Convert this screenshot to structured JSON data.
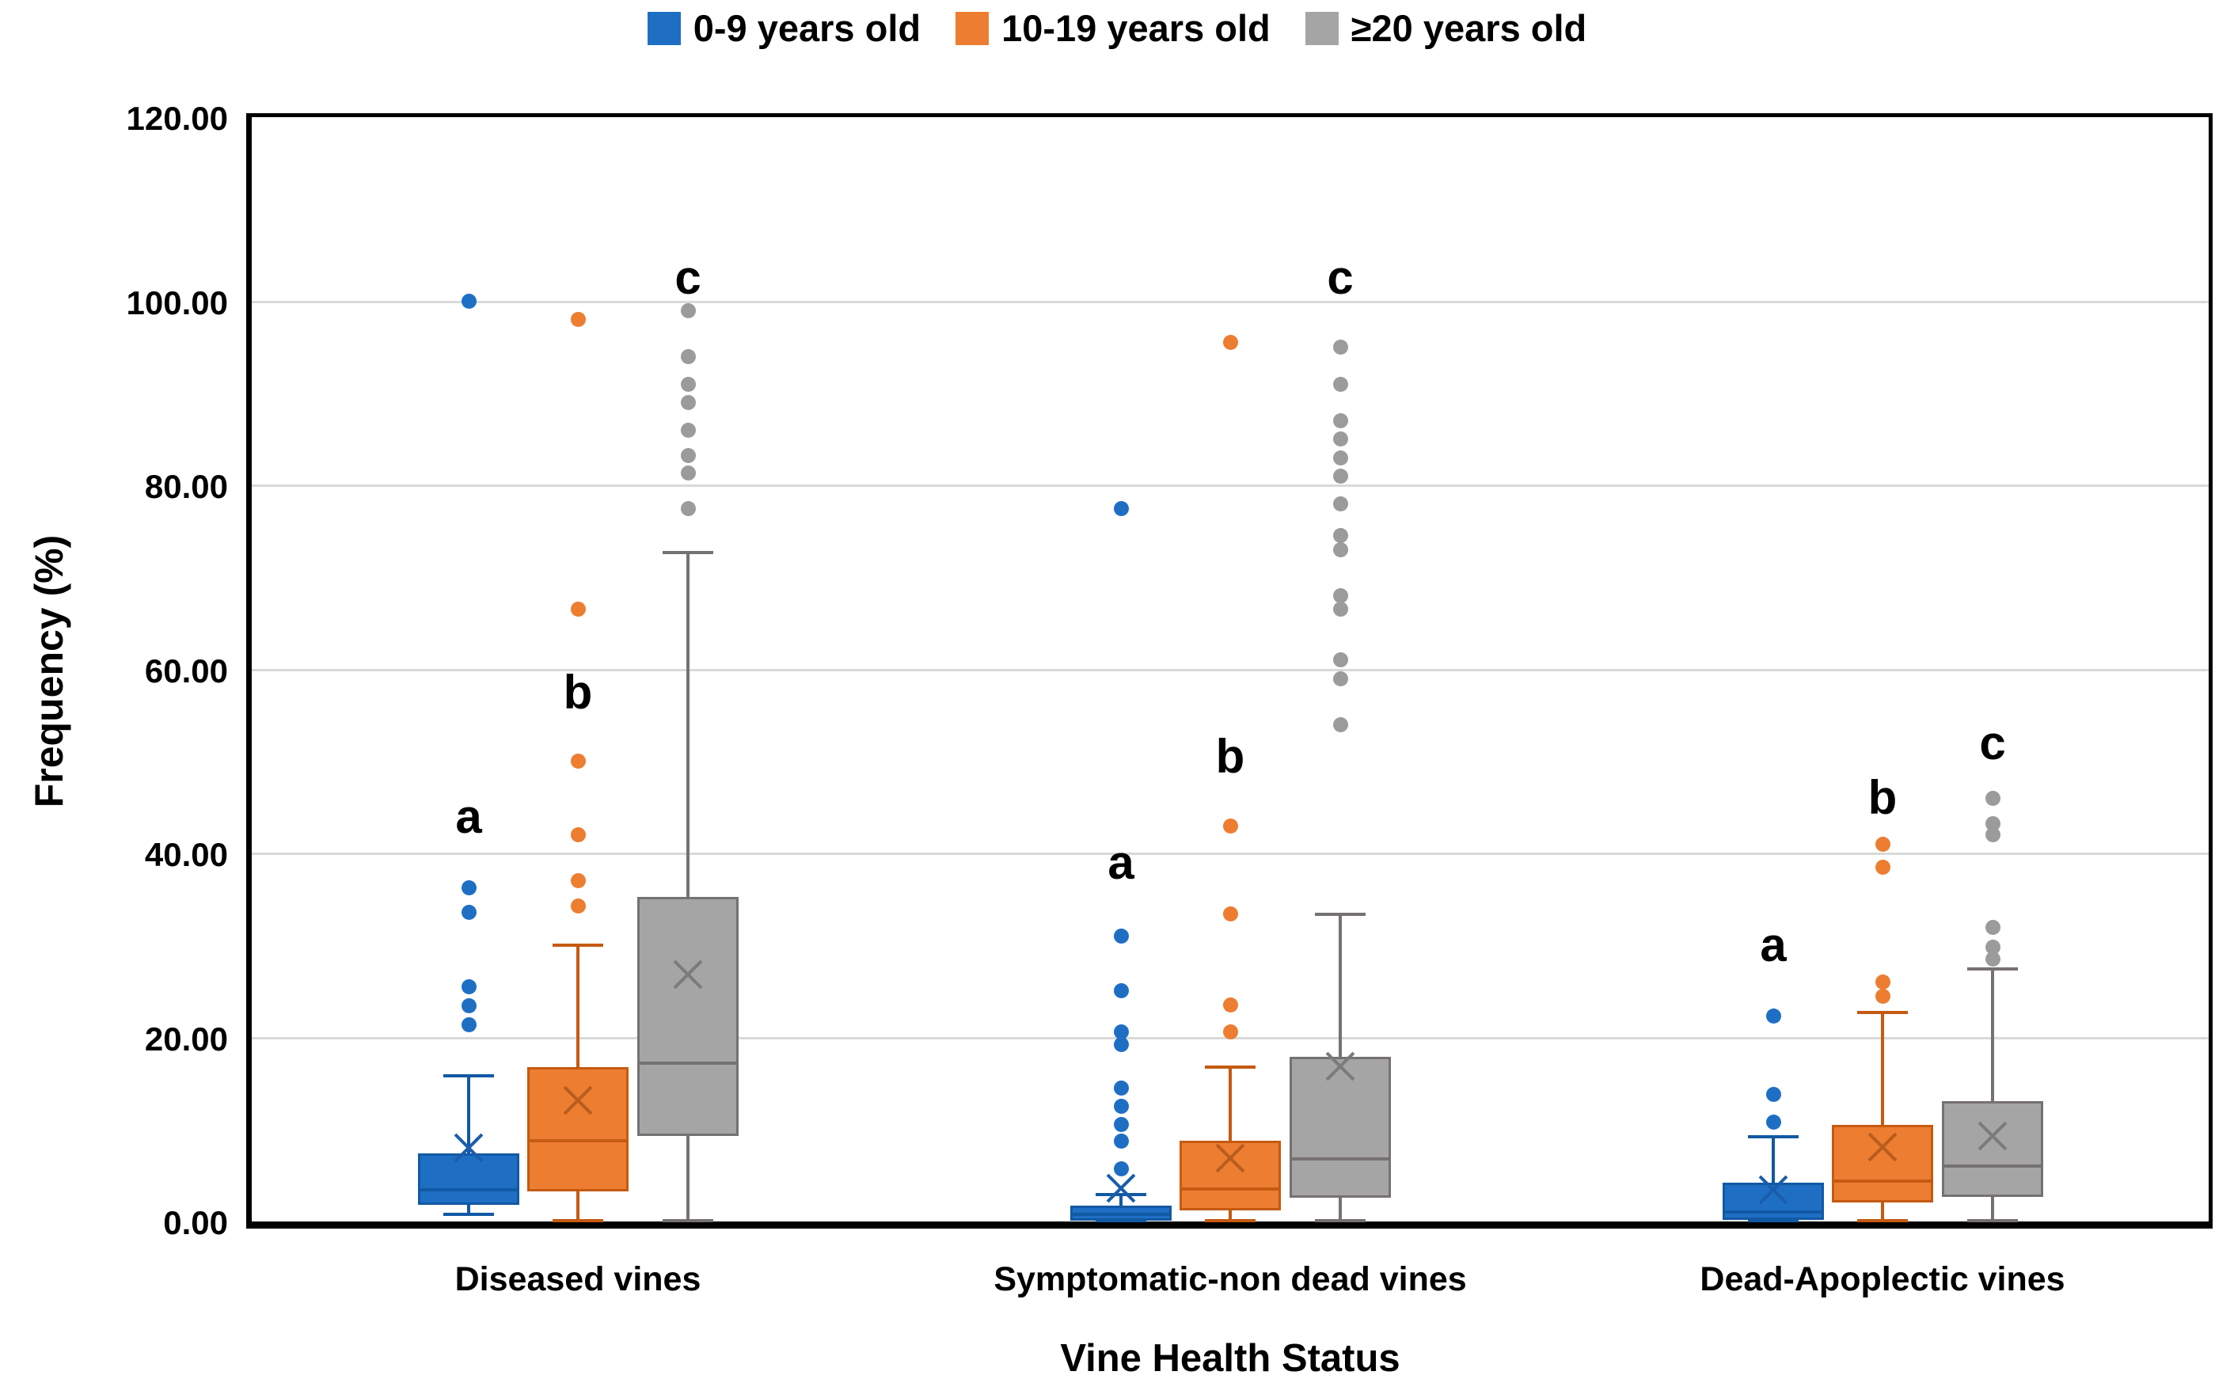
{
  "accent_colors": {
    "grid": "#d9d9d9",
    "axis": "#000000",
    "background": "#ffffff"
  },
  "legend": {
    "items": [
      {
        "label": "0-9 years old",
        "color": "#1e6fc4"
      },
      {
        "label": "10-19 years old",
        "color": "#ed7d31"
      },
      {
        "label": "≥20 years old",
        "color": "#a5a5a5"
      }
    ]
  },
  "chart_data": {
    "type": "boxplot",
    "title": "",
    "xlabel": "Vine Health Status",
    "ylabel": "Frequency (%)",
    "ylim": [
      0,
      120
    ],
    "grid": true,
    "legend_position": "top-center",
    "yticks": [
      "0.00",
      "20.00",
      "40.00",
      "60.00",
      "80.00",
      "100.00",
      "120.00"
    ],
    "categories": [
      "Diseased vines",
      "Symptomatic-non dead vines",
      "Dead-Apoplectic vines"
    ],
    "series": [
      {
        "name": "0-9 years old",
        "fill": "#1e6fc4",
        "line": "#1259a4",
        "mean_color": "#1a5dab",
        "dot": "#1e6fc4"
      },
      {
        "name": "10-19 years old",
        "fill": "#ed7d31",
        "line": "#c55a11",
        "mean_color": "#b85d1e",
        "dot": "#ed7d31"
      },
      {
        "name": "≥20 years old",
        "fill": "#a5a5a5",
        "line": "#767171",
        "mean_color": "#7b7b7b",
        "dot": "#9b9b9b"
      }
    ],
    "groups": [
      {
        "label": "Diseased vines",
        "boxes": [
          {
            "series": "0-9 years old",
            "whisker_low": 0.7,
            "q1": 1.8,
            "median": 3.4,
            "q3": 7.4,
            "whisker_high": 15.8,
            "mean": 8.0,
            "outliers": [
              100,
              36.3,
              33.6,
              25.5,
              23.4,
              21.4
            ],
            "letter": "a",
            "letter_y": 44
          },
          {
            "series": "10-19 years old",
            "whisker_low": 0,
            "q1": 3.3,
            "median": 8.8,
            "q3": 16.8,
            "whisker_high": 30,
            "mean": 13.2,
            "outliers": [
              98,
              66.5,
              50,
              42,
              37,
              34.3
            ],
            "letter": "b",
            "letter_y": 57.5
          },
          {
            "series": "≥20 years old",
            "whisker_low": 0,
            "q1": 9.3,
            "median": 17.2,
            "q3": 35.3,
            "whisker_high": 72.7,
            "mean": 26.8,
            "outliers": [
              99,
              94,
              91,
              89,
              86,
              83.2,
              81.3,
              77.5
            ],
            "letter": "c",
            "letter_y": 102.5
          }
        ]
      },
      {
        "label": "Symptomatic-non dead vines",
        "boxes": [
          {
            "series": "0-9 years old",
            "whisker_low": 0,
            "q1": 0.1,
            "median": 0.8,
            "q3": 1.7,
            "whisker_high": 2.9,
            "mean": 3.6,
            "outliers": [
              77.5,
              31,
              25.1,
              20.6,
              19.2,
              14.5,
              12.5,
              10.5,
              8.7,
              5.7
            ],
            "letter": "a",
            "letter_y": 39
          },
          {
            "series": "10-19 years old",
            "whisker_low": 0,
            "q1": 1.2,
            "median": 3.5,
            "q3": 8.8,
            "whisker_high": 16.8,
            "mean": 6.9,
            "outliers": [
              95.5,
              43,
              33.4,
              23.5,
              20.6
            ],
            "letter": "b",
            "letter_y": 50.5
          },
          {
            "series": "≥20 years old",
            "whisker_low": 0,
            "q1": 2.6,
            "median": 6.8,
            "q3": 17.9,
            "whisker_high": 33.4,
            "mean": 16.9,
            "outliers": [
              95,
              91,
              87,
              85,
              83,
              81,
              78,
              74.5,
              73,
              68,
              66.5,
              61,
              59,
              54
            ],
            "letter": "c",
            "letter_y": 102.5
          }
        ]
      },
      {
        "label": "Dead-Apoplectic vines",
        "boxes": [
          {
            "series": "0-9 years old",
            "whisker_low": 0,
            "q1": 0.2,
            "median": 1.0,
            "q3": 4.2,
            "whisker_high": 9.2,
            "mean": 3.4,
            "outliers": [
              22.3,
              13.8,
              10.8
            ],
            "letter": "a",
            "letter_y": 30
          },
          {
            "series": "10-19 years old",
            "whisker_low": 0,
            "q1": 2.1,
            "median": 4.4,
            "q3": 10.5,
            "whisker_high": 22.7,
            "mean": 8.1,
            "outliers": [
              41,
              38.5,
              26,
              24.5
            ],
            "letter": "b",
            "letter_y": 46
          },
          {
            "series": "≥20 years old",
            "whisker_low": 0,
            "q1": 2.7,
            "median": 6.0,
            "q3": 13.1,
            "whisker_high": 27.4,
            "mean": 9.3,
            "outliers": [
              46,
              43.2,
              42,
              32,
              29.8,
              28.5
            ],
            "letter": "c",
            "letter_y": 52
          }
        ]
      }
    ]
  }
}
